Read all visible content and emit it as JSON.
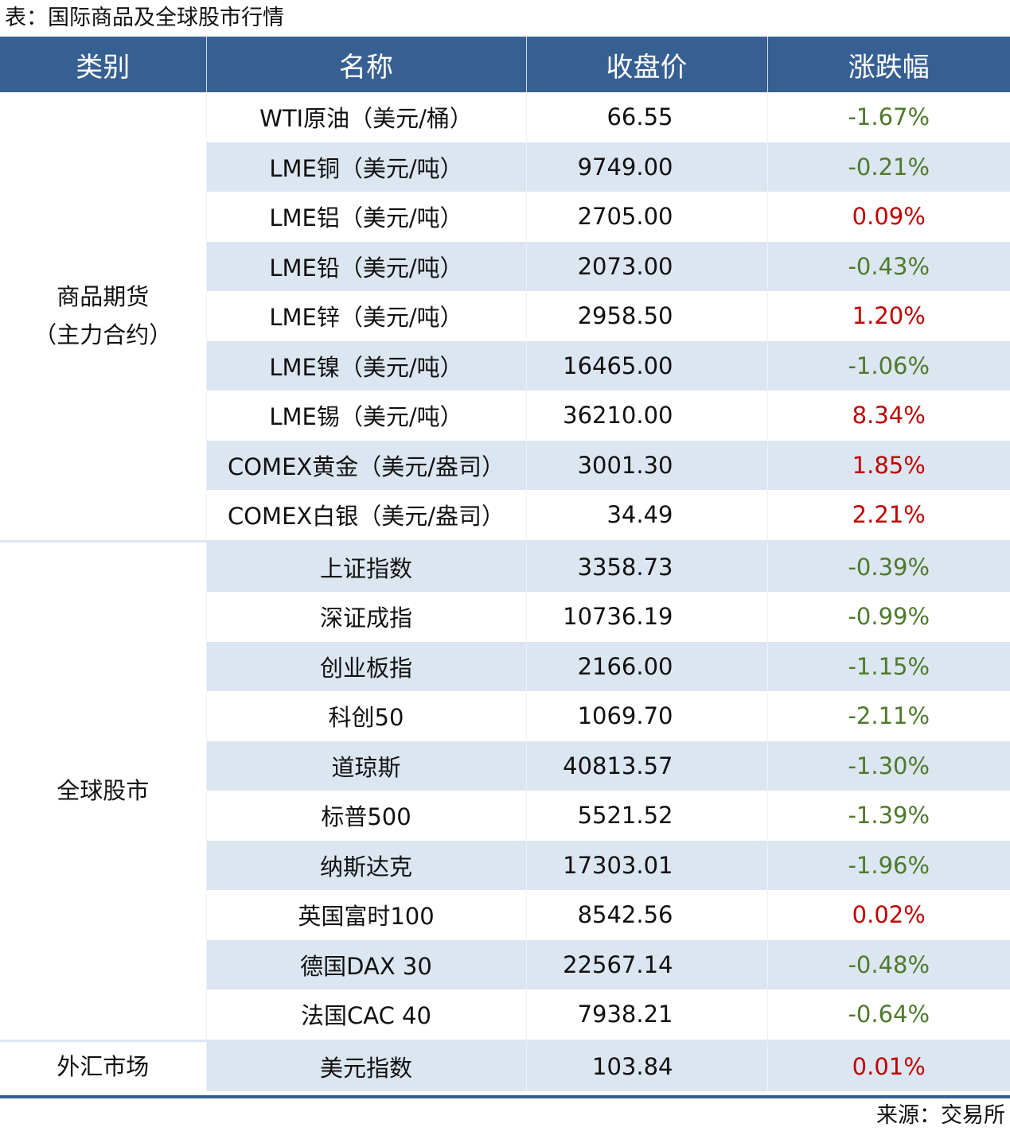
{
  "title": "表：国际商品及全球股市行情",
  "headers": [
    "类别",
    "名称",
    "收盘价",
    "涨跌幅"
  ],
  "colors": {
    "header": "#376092",
    "shade": "#dce6f1",
    "up": "#c00000",
    "down": "#4e7a2c"
  },
  "groups": [
    {
      "category": "商品期货\n（主力合约）",
      "rows": [
        {
          "name": "WTI原油（美元/桶）",
          "price": "66.55",
          "change": "-1.67%"
        },
        {
          "name": "LME铜（美元/吨）",
          "price": "9749.00",
          "change": "-0.21%"
        },
        {
          "name": "LME铝（美元/吨）",
          "price": "2705.00",
          "change": "0.09%"
        },
        {
          "name": "LME铅（美元/吨）",
          "price": "2073.00",
          "change": "-0.43%"
        },
        {
          "name": "LME锌（美元/吨）",
          "price": "2958.50",
          "change": "1.20%"
        },
        {
          "name": "LME镍（美元/吨）",
          "price": "16465.00",
          "change": "-1.06%"
        },
        {
          "name": "LME锡（美元/吨）",
          "price": "36210.00",
          "change": "8.34%"
        },
        {
          "name": "COMEX黄金（美元/盎司）",
          "price": "3001.30",
          "change": "1.85%"
        },
        {
          "name": "COMEX白银（美元/盎司）",
          "price": "34.49",
          "change": "2.21%"
        }
      ]
    },
    {
      "category": "全球股市",
      "rows": [
        {
          "name": "上证指数",
          "price": "3358.73",
          "change": "-0.39%"
        },
        {
          "name": "深证成指",
          "price": "10736.19",
          "change": "-0.99%"
        },
        {
          "name": "创业板指",
          "price": "2166.00",
          "change": "-1.15%"
        },
        {
          "name": "科创50",
          "price": "1069.70",
          "change": "-2.11%"
        },
        {
          "name": "道琼斯",
          "price": "40813.57",
          "change": "-1.30%"
        },
        {
          "name": "标普500",
          "price": "5521.52",
          "change": "-1.39%"
        },
        {
          "name": "纳斯达克",
          "price": "17303.01",
          "change": "-1.96%"
        },
        {
          "name": "英国富时100",
          "price": "8542.56",
          "change": "0.02%"
        },
        {
          "name": "德国DAX 30",
          "price": "22567.14",
          "change": "-0.48%"
        },
        {
          "name": "法国CAC 40",
          "price": "7938.21",
          "change": "-0.64%"
        }
      ]
    },
    {
      "category": "外汇市场",
      "rows": [
        {
          "name": "美元指数",
          "price": "103.84",
          "change": "0.01%"
        }
      ]
    }
  ],
  "source": "来源：交易所"
}
